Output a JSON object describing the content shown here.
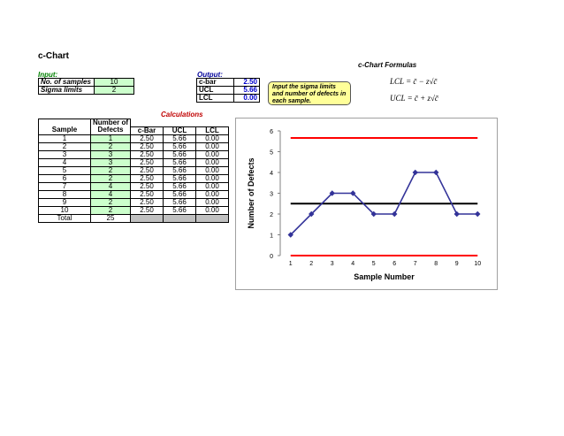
{
  "sheet": {
    "title": "c-Chart",
    "formulas_title": "c-Chart Formulas",
    "input_label": "Input:",
    "output_label": "Output:",
    "calculations_label": "Calculations",
    "note": "Input the sigma limits and number of defects in each sample."
  },
  "inputs": [
    {
      "label": "No. of samples",
      "value": "10"
    },
    {
      "label": "Sigma limits",
      "value": "2"
    }
  ],
  "outputs": [
    {
      "label": "c-bar",
      "value": "2.50"
    },
    {
      "label": "UCL",
      "value": "5.66"
    },
    {
      "label": "LCL",
      "value": "0.00"
    }
  ],
  "formulas": {
    "lcl": "LCL = c̄ − z√c̄",
    "ucl": "UCL = c̄ + z√c̄"
  },
  "table": {
    "headers": {
      "sample": "Sample",
      "defects_top": "Number of",
      "defects": "Defects",
      "cbar": "c-Bar",
      "ucl": "UCL",
      "lcl": "LCL"
    },
    "rows": [
      {
        "sample": "1",
        "defects": "1",
        "cbar": "2.50",
        "ucl": "5.66",
        "lcl": "0.00"
      },
      {
        "sample": "2",
        "defects": "2",
        "cbar": "2.50",
        "ucl": "5.66",
        "lcl": "0.00"
      },
      {
        "sample": "3",
        "defects": "3",
        "cbar": "2.50",
        "ucl": "5.66",
        "lcl": "0.00"
      },
      {
        "sample": "4",
        "defects": "3",
        "cbar": "2.50",
        "ucl": "5.66",
        "lcl": "0.00"
      },
      {
        "sample": "5",
        "defects": "2",
        "cbar": "2.50",
        "ucl": "5.66",
        "lcl": "0.00"
      },
      {
        "sample": "6",
        "defects": "2",
        "cbar": "2.50",
        "ucl": "5.66",
        "lcl": "0.00"
      },
      {
        "sample": "7",
        "defects": "4",
        "cbar": "2.50",
        "ucl": "5.66",
        "lcl": "0.00"
      },
      {
        "sample": "8",
        "defects": "4",
        "cbar": "2.50",
        "ucl": "5.66",
        "lcl": "0.00"
      },
      {
        "sample": "9",
        "defects": "2",
        "cbar": "2.50",
        "ucl": "5.66",
        "lcl": "0.00"
      },
      {
        "sample": "10",
        "defects": "2",
        "cbar": "2.50",
        "ucl": "5.66",
        "lcl": "0.00"
      }
    ],
    "total_label": "Total",
    "total_value": "25"
  },
  "chart_data": {
    "type": "line",
    "xlabel": "Sample Number",
    "ylabel": "Number of Defects",
    "x": [
      1,
      2,
      3,
      4,
      5,
      6,
      7,
      8,
      9,
      10
    ],
    "series": [
      {
        "values": [
          1,
          2,
          3,
          3,
          2,
          2,
          4,
          4,
          2,
          2
        ],
        "color": "#333399",
        "marker": "diamond"
      }
    ],
    "ucl": 5.66,
    "center": 2.5,
    "lcl": 0,
    "ucl_color": "#ff0000",
    "center_color": "#000000",
    "lcl_color": "#ff0000",
    "ylim": [
      0,
      6
    ],
    "xlim": [
      0.5,
      10.5
    ],
    "yticks": [
      0,
      1,
      2,
      3,
      4,
      5,
      6
    ],
    "grid": false,
    "legend": "none"
  }
}
